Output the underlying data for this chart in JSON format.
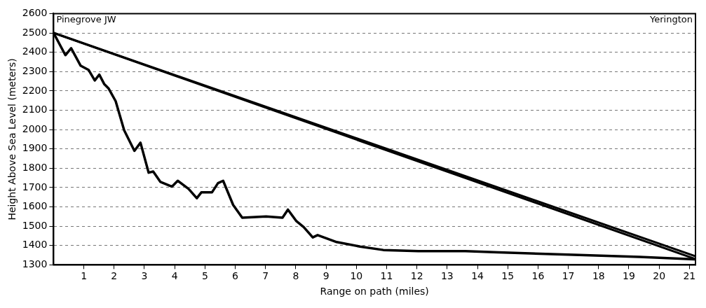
{
  "chart_data": {
    "type": "line",
    "xlabel": "Range on path (miles)",
    "ylabel": "Height Above Sea Level (meters)",
    "annotations": [
      "Pinegrove JW",
      "Yerington"
    ],
    "series": [
      {
        "color": "#000000",
        "x": [
          0,
          0.39,
          0.58,
          0.89,
          1.16,
          1.36,
          1.51,
          1.67,
          1.82,
          2.05,
          2.33,
          2.67,
          2.87,
          3.14,
          3.29,
          3.53,
          3.91,
          4.1,
          4.46,
          4.73,
          4.88,
          5.23,
          5.43,
          5.6,
          5.93,
          6.23,
          7.02,
          7.56,
          7.74,
          8.02,
          8.26,
          8.56,
          8.72,
          9.35,
          10.12,
          10.89,
          12.05,
          13.6,
          14.7,
          17,
          19.35,
          21.2
        ],
        "values": [
          2500,
          2385,
          2421,
          2331,
          2308,
          2254,
          2284,
          2236,
          2212,
          2147,
          1997,
          1890,
          1932,
          1777,
          1783,
          1729,
          1705,
          1735,
          1693,
          1645,
          1675,
          1675,
          1723,
          1735,
          1610,
          1544,
          1550,
          1544,
          1586,
          1526,
          1496,
          1442,
          1454,
          1418,
          1395,
          1377,
          1371,
          1371,
          1365,
          1353,
          1341,
          1329
        ]
      },
      {
        "color": "#000000",
        "x": [
          0,
          21.2
        ],
        "values": [
          2500,
          1345
        ]
      },
      {
        "color": "#000000",
        "x": [
          0,
          21.2
        ],
        "values": [
          2500,
          1330
        ]
      }
    ],
    "xlim": [
      0,
      21.2
    ],
    "xticks": [
      1,
      2,
      3,
      4,
      5,
      6,
      7,
      8,
      9,
      10,
      11,
      12,
      13,
      14,
      15,
      16,
      17,
      18,
      19,
      20,
      21
    ],
    "ylim": [
      1300,
      2600
    ],
    "yticks": [
      1300,
      1400,
      1500,
      1600,
      1700,
      1800,
      1900,
      2000,
      2100,
      2200,
      2300,
      2400,
      2500,
      2600
    ],
    "grid": "y",
    "legend": false,
    "marker": "none",
    "line_style": "solid"
  }
}
